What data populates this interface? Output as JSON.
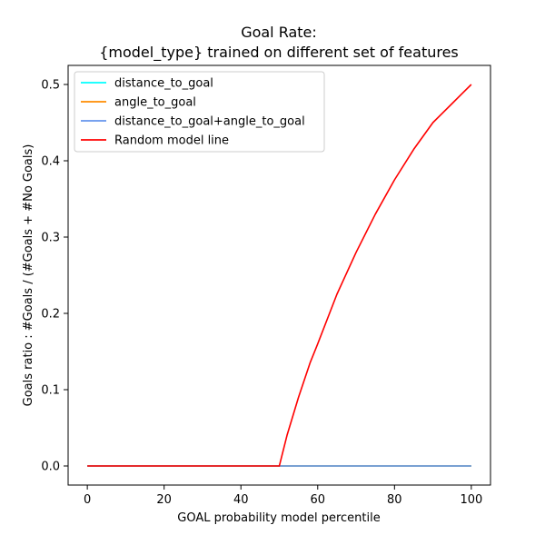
{
  "chart_data": {
    "type": "line",
    "title": "Goal Rate:",
    "subtitle": "{model_type} trained on different set of features",
    "xlabel": "GOAL probability model percentile",
    "ylabel": "Goals ratio : #Goals / (#Goals + #No Goals)",
    "xlim": [
      -5,
      105
    ],
    "ylim": [
      -0.025,
      0.525
    ],
    "xticks": [
      0,
      20,
      40,
      60,
      80,
      100
    ],
    "yticks": [
      0.0,
      0.1,
      0.2,
      0.3,
      0.4,
      0.5
    ],
    "xtick_labels": [
      "0",
      "20",
      "40",
      "60",
      "80",
      "100"
    ],
    "ytick_labels": [
      "0.0",
      "0.1",
      "0.2",
      "0.3",
      "0.4",
      "0.5"
    ],
    "grid": false,
    "legend_position": "top-left",
    "series": [
      {
        "name": "distance_to_goal",
        "color": "#00ffff",
        "x": [
          0,
          100
        ],
        "y": [
          0,
          0
        ]
      },
      {
        "name": "angle_to_goal",
        "color": "#ff8c00",
        "x": [
          0,
          100
        ],
        "y": [
          0,
          0
        ]
      },
      {
        "name": "distance_to_goal+angle_to_goal",
        "color": "#6495ed",
        "x": [
          0,
          100
        ],
        "y": [
          0,
          0
        ]
      },
      {
        "name": "Random model line",
        "color": "#ff0000",
        "x": [
          0,
          50,
          52,
          55,
          58,
          60,
          65,
          70,
          75,
          80,
          85,
          90,
          95,
          100
        ],
        "y": [
          0,
          0,
          0.04,
          0.09,
          0.135,
          0.16,
          0.225,
          0.28,
          0.33,
          0.375,
          0.415,
          0.45,
          0.475,
          0.5
        ]
      }
    ]
  }
}
